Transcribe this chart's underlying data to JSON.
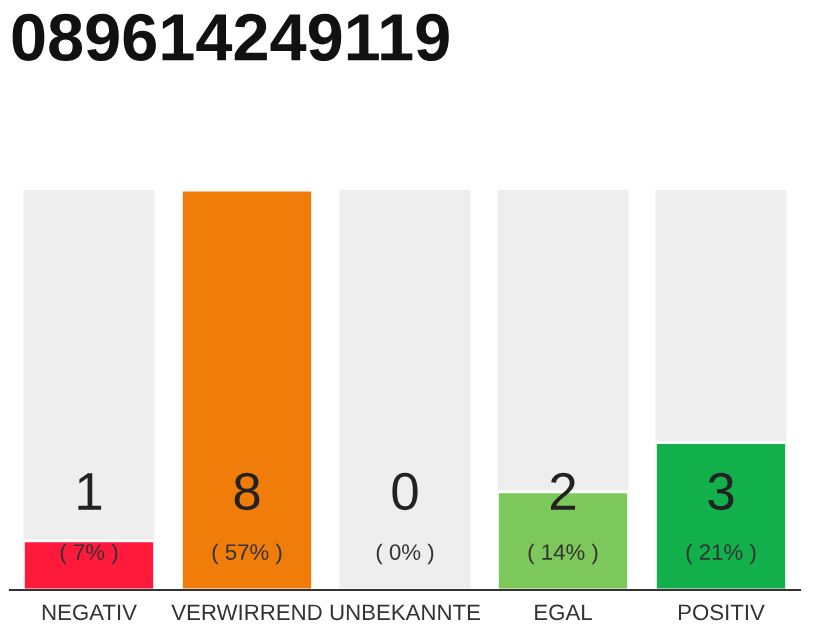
{
  "chart_data": {
    "type": "bar",
    "title": "089614249119",
    "categories": [
      "NEGATIV",
      "VERWIRREND",
      "UNBEKANNTE",
      "EGAL",
      "POSITIV"
    ],
    "values": [
      7,
      57,
      0,
      14,
      21
    ],
    "colors": [
      "#ff1a3c",
      "#f07d0a",
      null,
      "#7dc85a",
      "#12b04a"
    ],
    "value_labels": [
      "( 7% )",
      "( 57% )",
      "( 0% )",
      "( 14% )",
      "( 21% )"
    ],
    "annotations": [
      "1",
      "8",
      "0",
      "2",
      "3"
    ],
    "grid": false,
    "legend": false
  }
}
